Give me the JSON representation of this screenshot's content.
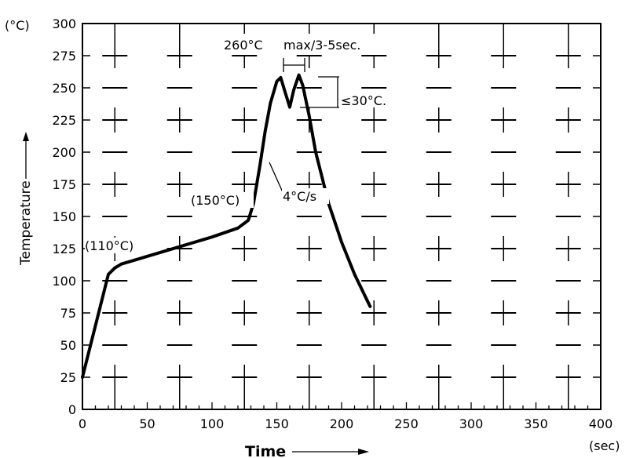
{
  "chart_data": {
    "type": "line",
    "title": "",
    "xlabel": "Time",
    "ylabel": "Temperature",
    "x_unit": "(sec)",
    "y_unit": "(°C)",
    "xlim": [
      0,
      400
    ],
    "ylim": [
      0,
      300
    ],
    "x_ticks": [
      "0",
      "50",
      "100",
      "150",
      "200",
      "250",
      "300",
      "350",
      "400"
    ],
    "y_ticks": [
      "0",
      "25",
      "50",
      "75",
      "100",
      "125",
      "150",
      "175",
      "200",
      "225",
      "250",
      "275",
      "300"
    ],
    "grid": "crosshair markers",
    "series": [
      {
        "x": [
          0,
          10,
          20,
          25,
          30,
          40,
          60,
          80,
          100,
          120,
          128,
          132,
          137,
          141,
          145,
          150,
          153,
          156,
          160,
          163,
          167,
          170,
          175,
          180,
          185,
          190,
          195,
          200,
          210,
          222
        ],
        "y": [
          25,
          65,
          105,
          110,
          113,
          116,
          122,
          128,
          134,
          141,
          147,
          160,
          190,
          216,
          238,
          255,
          258,
          248,
          235,
          248,
          260,
          252,
          228,
          200,
          180,
          160,
          145,
          130,
          105,
          80
        ]
      }
    ],
    "annotations": [
      {
        "text": "(110°C)"
      },
      {
        "text": "(150°C)"
      },
      {
        "text": "4°C/s"
      },
      {
        "text": "260°C"
      },
      {
        "text": "max/3-5sec."
      },
      {
        "text": "≤30°C."
      }
    ]
  }
}
